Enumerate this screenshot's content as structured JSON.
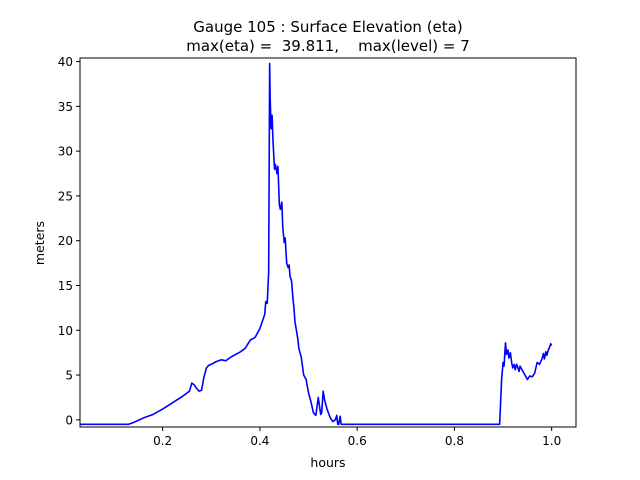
{
  "chart_data": {
    "type": "line",
    "title": "Gauge 105 : Surface Elevation (eta)",
    "subtitle": "max(eta) =  39.811,    max(level) = 7",
    "xlabel": "hours",
    "ylabel": "meters",
    "xlim": [
      0.03,
      1.05
    ],
    "ylim": [
      -0.8,
      40.4
    ],
    "xticks": [
      0.2,
      0.4,
      0.6,
      0.8,
      1.0
    ],
    "xtick_labels": [
      "0.2",
      "0.4",
      "0.6",
      "0.8",
      "1.0"
    ],
    "yticks": [
      0,
      5,
      10,
      15,
      20,
      25,
      30,
      35,
      40
    ],
    "ytick_labels": [
      "0",
      "5",
      "10",
      "15",
      "20",
      "25",
      "30",
      "35",
      "40"
    ],
    "grid": false,
    "series": [
      {
        "name": "eta",
        "color": "#0000ff",
        "x": [
          0.03,
          0.13,
          0.14,
          0.16,
          0.18,
          0.2,
          0.22,
          0.24,
          0.25,
          0.255,
          0.26,
          0.265,
          0.27,
          0.275,
          0.28,
          0.285,
          0.29,
          0.295,
          0.3,
          0.31,
          0.32,
          0.33,
          0.34,
          0.35,
          0.36,
          0.37,
          0.38,
          0.39,
          0.4,
          0.405,
          0.41,
          0.412,
          0.415,
          0.418,
          0.42,
          0.421,
          0.423,
          0.425,
          0.427,
          0.43,
          0.432,
          0.435,
          0.437,
          0.44,
          0.442,
          0.445,
          0.447,
          0.45,
          0.452,
          0.455,
          0.458,
          0.46,
          0.462,
          0.465,
          0.468,
          0.47,
          0.472,
          0.475,
          0.478,
          0.48,
          0.485,
          0.49,
          0.495,
          0.5,
          0.505,
          0.51,
          0.515,
          0.52,
          0.525,
          0.527,
          0.53,
          0.533,
          0.535,
          0.538,
          0.54,
          0.545,
          0.55,
          0.555,
          0.558,
          0.56,
          0.562,
          0.565,
          0.567,
          0.6,
          0.7,
          0.8,
          0.893,
          0.895,
          0.897,
          0.9,
          0.902,
          0.905,
          0.907,
          0.91,
          0.912,
          0.915,
          0.918,
          0.92,
          0.923,
          0.925,
          0.928,
          0.93,
          0.933,
          0.935,
          0.94,
          0.945,
          0.95,
          0.955,
          0.96,
          0.965,
          0.97,
          0.975,
          0.98,
          0.983,
          0.985,
          0.988,
          0.99,
          0.993,
          0.995,
          0.998,
          1.0
        ],
        "y": [
          -0.5,
          -0.5,
          -0.3,
          0.2,
          0.6,
          1.2,
          1.9,
          2.6,
          3.0,
          3.2,
          4.1,
          3.9,
          3.5,
          3.2,
          3.3,
          4.8,
          5.8,
          6.1,
          6.2,
          6.5,
          6.7,
          6.6,
          7.0,
          7.3,
          7.6,
          8.0,
          8.9,
          9.2,
          10.2,
          11.0,
          11.8,
          13.2,
          13.0,
          16.5,
          39.8,
          36.0,
          32.5,
          34.0,
          31.0,
          28.0,
          28.5,
          27.5,
          28.3,
          24.0,
          23.5,
          24.3,
          21.5,
          19.8,
          20.3,
          17.5,
          17.0,
          17.3,
          16.0,
          15.5,
          13.5,
          12.5,
          11.0,
          10.0,
          9.0,
          8.0,
          7.0,
          5.0,
          4.5,
          3.0,
          2.0,
          0.8,
          0.5,
          2.5,
          0.6,
          0.8,
          3.2,
          2.2,
          1.8,
          1.2,
          0.9,
          0.2,
          -0.2,
          0.0,
          0.5,
          -0.5,
          -0.5,
          0.4,
          -0.5,
          -0.5,
          -0.5,
          -0.5,
          -0.5,
          2.0,
          4.5,
          6.4,
          6.0,
          8.6,
          7.3,
          7.8,
          6.9,
          7.5,
          6.3,
          5.8,
          6.2,
          5.6,
          6.2,
          5.9,
          5.4,
          6.0,
          5.5,
          5.0,
          4.5,
          4.9,
          4.8,
          5.2,
          6.4,
          6.2,
          6.8,
          7.4,
          6.8,
          7.6,
          7.2,
          7.8,
          8.0,
          8.5,
          8.3
        ]
      }
    ]
  }
}
